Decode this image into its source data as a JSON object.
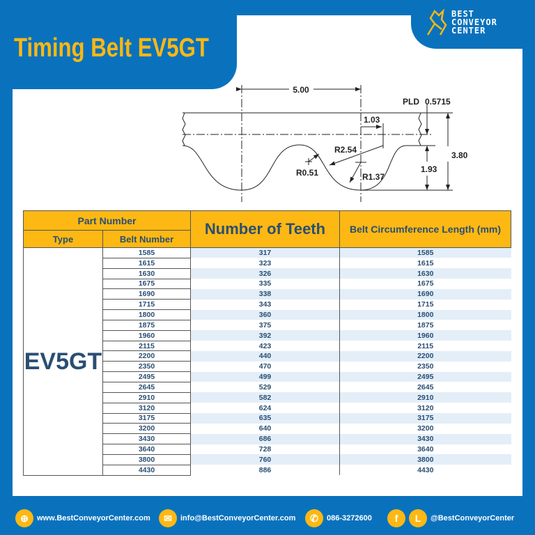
{
  "title": "Timing Belt EV5GT",
  "logo": {
    "line1": "BEST",
    "line2": "CONVEYOR",
    "line3": "CENTER"
  },
  "diagram": {
    "pitch": "5.00",
    "pld_label": "PLD",
    "pld": "0.5715",
    "d103": "1.03",
    "r254": "R2.54",
    "r051": "R0.51",
    "r137": "R1.37",
    "h380": "3.80",
    "h193": "1.93"
  },
  "table": {
    "headers": {
      "part_number": "Part Number",
      "type": "Type",
      "belt_number": "Belt Number",
      "teeth": "Number of Teeth",
      "length": "Belt Circumference Length (mm)"
    },
    "type": "EV5GT",
    "rows": [
      [
        "1585",
        "317",
        "1585"
      ],
      [
        "1615",
        "323",
        "1615"
      ],
      [
        "1630",
        "326",
        "1630"
      ],
      [
        "1675",
        "335",
        "1675"
      ],
      [
        "1690",
        "338",
        "1690"
      ],
      [
        "1715",
        "343",
        "1715"
      ],
      [
        "1800",
        "360",
        "1800"
      ],
      [
        "1875",
        "375",
        "1875"
      ],
      [
        "1960",
        "392",
        "1960"
      ],
      [
        "2115",
        "423",
        "2115"
      ],
      [
        "2200",
        "440",
        "2200"
      ],
      [
        "2350",
        "470",
        "2350"
      ],
      [
        "2495",
        "499",
        "2495"
      ],
      [
        "2645",
        "529",
        "2645"
      ],
      [
        "2910",
        "582",
        "2910"
      ],
      [
        "3120",
        "624",
        "3120"
      ],
      [
        "3175",
        "635",
        "3175"
      ],
      [
        "3200",
        "640",
        "3200"
      ],
      [
        "3430",
        "686",
        "3430"
      ],
      [
        "3640",
        "728",
        "3640"
      ],
      [
        "3800",
        "760",
        "3800"
      ],
      [
        "4430",
        "886",
        "4430"
      ]
    ]
  },
  "footer": {
    "website": "www.BestConveyorCenter.com",
    "email": "info@BestConveyorCenter.com",
    "phone": "086-3272600",
    "social": "@BestConveyorCenter",
    "facebook_glyph": "f",
    "line_glyph": "L"
  },
  "colors": {
    "brand_blue": "#0a72bd",
    "accent_yellow": "#fdb813",
    "text_navy": "#2a4e73"
  }
}
